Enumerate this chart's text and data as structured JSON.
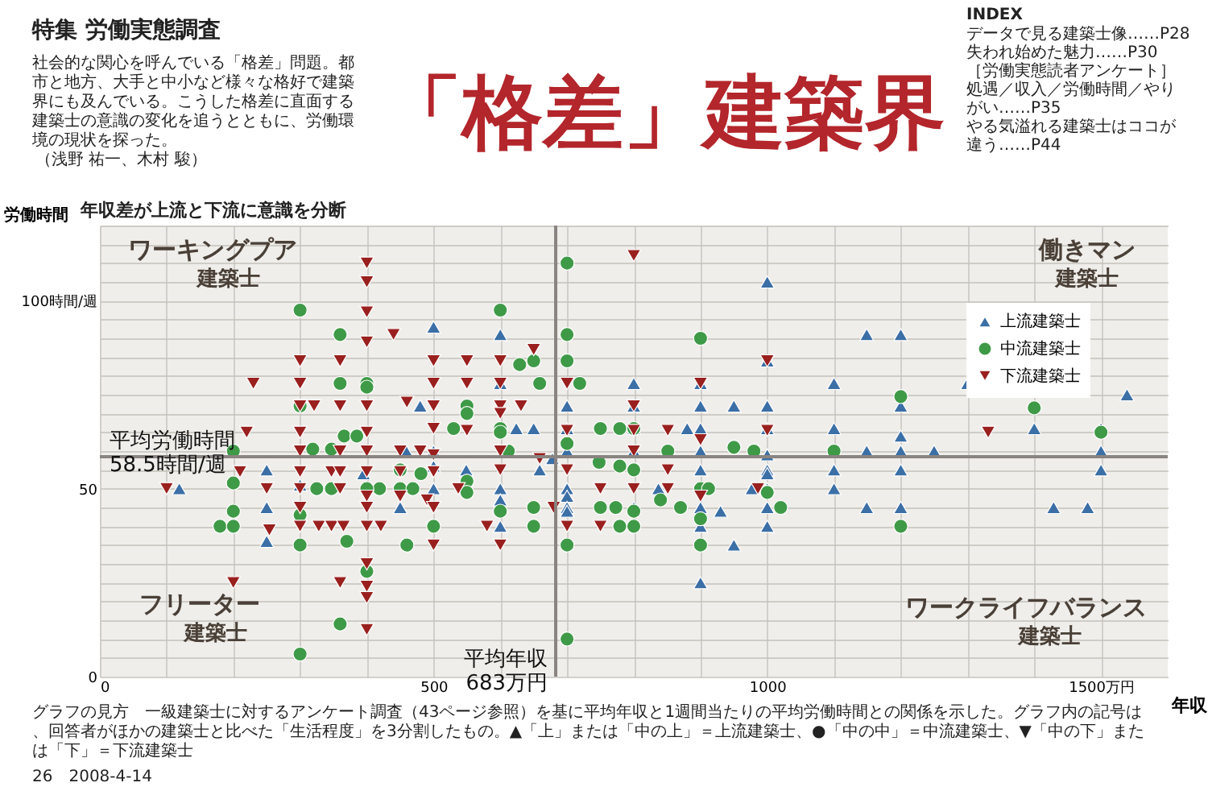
{
  "chart_data": {
    "type": "scatter",
    "title": "「格差」建築界",
    "subtitle": "年収差が上流と下流に意識を分断",
    "xlabel": "年収",
    "ylabel": "労働時間",
    "annotations": [
      "特集 労働実態調査",
      "社会的な関心を呼んでいる「格差」問題。都市と地方、大手と中小など様々な格好で建築界にも及んでいる。こうした格差に直面する建築士の意識の変化を追うとともに、労働環境の現状を探った。",
      "（浅野 祐一、木村 駿）",
      "INDEX",
      "データで見る建築士像……P28",
      "失われ始めた魅力……P30",
      "［労働実態読者アンケート］処遇／収入／労働時間／やりがい……P35",
      "やる気溢れる建築士はココが違う……P44",
      "ワーキングプア",
      "建築士",
      "働きマン",
      "建築士",
      "フリーター",
      "建築士",
      "ワークライフバランス",
      "建築士",
      "グラフの見方　一級建築士に対するアンケート調査（43ページ参照）を基に平均年収と1週間当たりの平均労働時間との関係を示した。グラフ内の記号は、回答者がほかの建築士と比べた「生活程度」を3分割したもの。▲「上」または「中の上」＝上流建築士、●「中の中」＝中流建築士、▼「中の下」または「下」＝下流建築士",
      "26　2008-4-14"
    ],
    "xlim": [
      0,
      1600
    ],
    "ylim": [
      0,
      120
    ],
    "xticks": [
      0,
      {
        "value": 100,
        "label": null
      },
      {
        "value": 200,
        "label": null
      },
      {
        "value": 300,
        "label": null
      },
      {
        "value": 400,
        "label": null
      },
      500,
      {
        "value": 600,
        "label": null
      },
      {
        "value": 700,
        "label": null
      },
      {
        "value": 800,
        "label": null
      },
      {
        "value": 900,
        "label": null
      },
      1000,
      {
        "value": 1100,
        "label": null
      },
      {
        "value": 1200,
        "label": null
      },
      {
        "value": 1300,
        "label": null
      },
      {
        "value": 1400,
        "label": null
      },
      {
        "value": 1500,
        "label": "1500万円"
      }
    ],
    "yticks": [
      0,
      {
        "value": 5,
        "label": null
      },
      {
        "value": 10,
        "label": null
      },
      {
        "value": 15,
        "label": null
      },
      {
        "value": 20,
        "label": null
      },
      {
        "value": 25,
        "label": null
      },
      {
        "value": 30,
        "label": null
      },
      {
        "value": 35,
        "label": null
      },
      {
        "value": 40,
        "label": null
      },
      {
        "value": 45,
        "label": null
      },
      50,
      {
        "value": 55,
        "label": null
      },
      {
        "value": 60,
        "label": null
      },
      {
        "value": 65,
        "label": null
      },
      {
        "value": 70,
        "label": null
      },
      {
        "value": 75,
        "label": null
      },
      {
        "value": 80,
        "label": null
      },
      {
        "value": 85,
        "label": null
      },
      {
        "value": 90,
        "label": null
      },
      {
        "value": 95,
        "label": null
      },
      {
        "value": 100,
        "label": "100時間/週"
      },
      {
        "value": 105,
        "label": null
      },
      {
        "value": 110,
        "label": null
      },
      {
        "value": 115,
        "label": null
      },
      {
        "value": 120,
        "label": null
      }
    ],
    "grid": true,
    "legend": "top right",
    "ref_lines": [
      {
        "axis": "x",
        "value": 683,
        "label": "平均年収\n683万円",
        "color": "#8a8480"
      },
      {
        "axis": "y",
        "value": 58.5,
        "label": "平均労働時間\n58.5時間/週",
        "color": "#8a8480"
      }
    ],
    "series": [
      {
        "name": "上流建築士",
        "color": "#3b6fa6",
        "marker": "triangle",
        "x": [
          500,
          480,
          250,
          300,
          119,
          395,
          250,
          450,
          250,
          500,
          500,
          459,
          500,
          600,
          1000,
          1000,
          600,
          800,
          900,
          700,
          800,
          900,
          950,
          1000,
          624,
          650,
          700,
          800,
          880,
          900,
          1000,
          700,
          800,
          900,
          1000,
          678,
          659,
          549,
          900,
          1000,
          1000,
          600,
          600,
          700,
          700,
          700,
          700,
          837,
          977,
          1000,
          800,
          900,
          930,
          1000,
          1000,
          600,
          900,
          950,
          900,
          1149,
          1200,
          1100,
          1300,
          1539,
          1200,
          1100,
          1200,
          1400,
          1500,
          1149,
          1200,
          1250,
          1500,
          1100,
          1200,
          1500,
          1100,
          1149,
          1200,
          1429,
          1480
        ],
        "values": [
          93,
          72,
          55,
          51,
          50,
          54,
          45,
          45,
          36,
          60,
          56,
          60,
          50,
          91,
          105,
          84,
          78,
          78,
          78,
          72,
          72,
          72,
          72,
          72,
          66,
          66,
          66,
          66,
          66,
          66,
          66,
          60,
          60,
          60,
          59,
          58,
          55,
          55,
          55,
          55,
          54,
          50,
          47,
          50,
          48,
          45,
          44,
          50,
          50,
          50,
          45,
          45,
          44,
          45,
          40,
          40,
          40,
          35,
          25,
          91,
          91,
          78,
          78,
          75,
          72,
          66,
          64,
          66,
          66,
          60,
          60,
          60,
          60,
          55,
          55,
          55,
          50,
          45,
          45,
          45,
          45
        ]
      },
      {
        "name": "中流建築士",
        "color": "#3f9a47",
        "marker": "circle",
        "x": [
          300,
          360,
          360,
          400,
          400,
          300,
          366,
          385,
          319,
          347,
          530,
          200,
          200,
          325,
          347,
          419,
          450,
          469,
          400,
          200,
          180,
          200,
          300,
          300,
          370,
          460,
          500,
          400,
          360,
          300,
          450,
          481,
          700,
          600,
          700,
          900,
          700,
          629,
          650,
          659,
          719,
          550,
          550,
          600,
          600,
          750,
          779,
          800,
          612,
          700,
          851,
          950,
          980,
          748,
          779,
          800,
          550,
          550,
          900,
          912,
          840,
          600,
          650,
          750,
          773,
          800,
          870,
          1020,
          1000,
          650,
          779,
          800,
          900,
          700,
          900,
          700,
          1200,
          1400,
          1100,
          1500,
          1200
        ],
        "values": [
          97.5,
          91,
          78,
          78,
          77,
          72,
          64,
          64,
          60.5,
          60.5,
          66,
          60,
          51.5,
          50,
          50,
          50,
          50,
          50,
          50,
          44,
          40,
          40,
          43,
          35,
          36,
          35,
          40,
          28,
          14,
          6,
          55,
          54,
          110,
          97.5,
          91,
          90,
          84,
          83,
          84,
          78,
          78,
          72,
          70,
          66,
          65,
          66,
          66,
          66,
          60,
          62,
          60,
          61,
          60,
          57,
          56,
          55,
          52,
          49,
          50,
          50,
          47,
          44,
          45,
          45,
          45,
          44,
          45,
          45,
          49,
          40,
          40,
          40,
          42,
          35,
          35,
          10,
          74.5,
          71.5,
          60,
          65,
          40
        ]
      },
      {
        "name": "下流建築士",
        "color": "#99201e",
        "marker": "triangle-down",
        "x": [
          400,
          400,
          400,
          400,
          440,
          300,
          360,
          500,
          230,
          300,
          500,
          300,
          321,
          360,
          400,
          460,
          500,
          220,
          300,
          400,
          500,
          300,
          360,
          400,
          450,
          480,
          500,
          210,
          300,
          347,
          360,
          400,
          450,
          500,
          100,
          250,
          300,
          360,
          400,
          537,
          300,
          400,
          450,
          490,
          500,
          300,
          328,
          347,
          365,
          400,
          421,
          254,
          500,
          400,
          200,
          360,
          400,
          400,
          400,
          800,
          650,
          550,
          600,
          1000,
          550,
          600,
          700,
          900,
          600,
          631,
          800,
          600,
          550,
          700,
          800,
          851,
          1000,
          600,
          800,
          900,
          659,
          600,
          700,
          851,
          750,
          800,
          851,
          986,
          900,
          680,
          580,
          700,
          750,
          600,
          1331
        ],
        "values": [
          110,
          105,
          97,
          89,
          91,
          84,
          84,
          84,
          78,
          78,
          78,
          72,
          72,
          72,
          72,
          73,
          72,
          65,
          65,
          65,
          66,
          60,
          60,
          60,
          60,
          60,
          59,
          54.5,
          54.5,
          54.5,
          54.5,
          54.5,
          54.5,
          54.5,
          50,
          50,
          50,
          50,
          48,
          50,
          45,
          45,
          48,
          47,
          45,
          40,
          40,
          40,
          40,
          40,
          40,
          39,
          35,
          30,
          25,
          25,
          24,
          21,
          12.5,
          112,
          87,
          84,
          84,
          84,
          78,
          78,
          78,
          78,
          72,
          72,
          72,
          70,
          65.5,
          65.5,
          65.5,
          65.5,
          65.5,
          60,
          60,
          63,
          58,
          55,
          55,
          55,
          50,
          50,
          50,
          50,
          48,
          45,
          40,
          40,
          40,
          35,
          65
        ]
      }
    ]
  }
}
